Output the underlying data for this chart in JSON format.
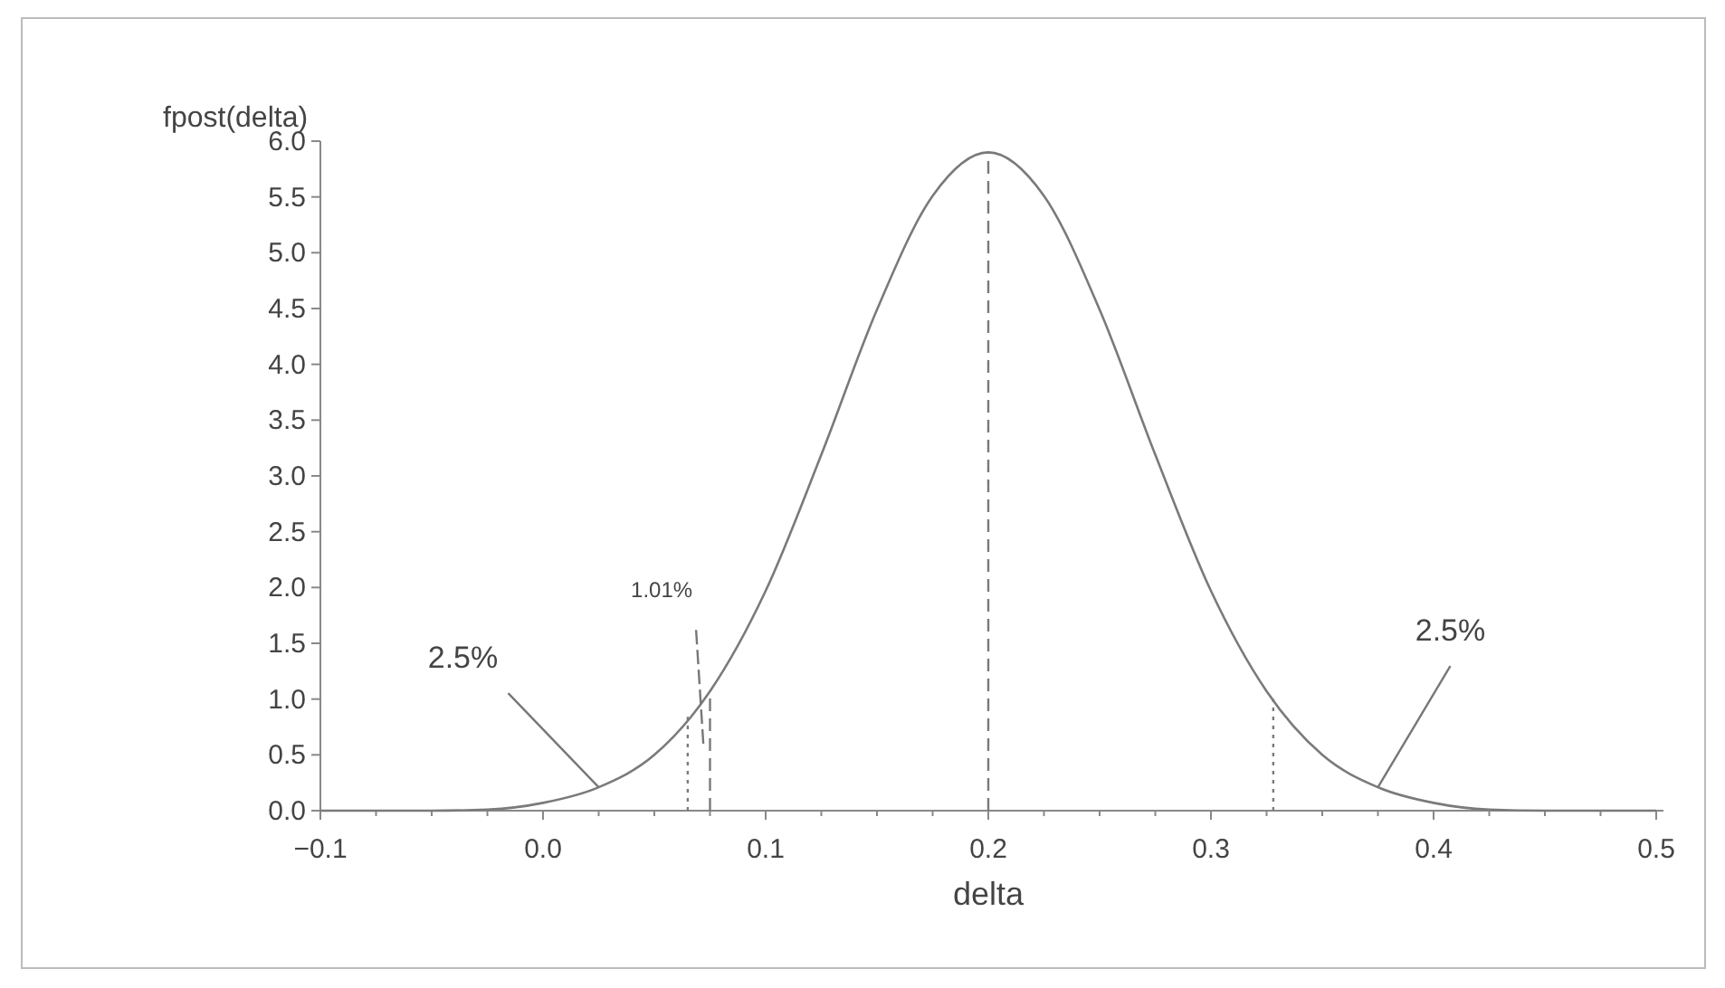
{
  "chart_data": {
    "type": "line",
    "xlabel": "delta",
    "ylabel": "fpost(delta)",
    "x": [
      -0.1,
      -0.075,
      -0.05,
      -0.025,
      0,
      0.025,
      0.05,
      0.075,
      0.1,
      0.125,
      0.15,
      0.175,
      0.2,
      0.225,
      0.25,
      0.275,
      0.3,
      0.325,
      0.35,
      0.375,
      0.4,
      0.425,
      0.45,
      0.475,
      0.5
    ],
    "series": [
      {
        "color": "#7a7a7a",
        "values": [
          0,
          0,
          0,
          0.01,
          0.07,
          0.21,
          0.5,
          1.07,
          1.97,
          3.19,
          4.49,
          5.51,
          5.9,
          5.51,
          4.49,
          3.19,
          1.97,
          1.07,
          0.5,
          0.21,
          0.07,
          0.01,
          0,
          0,
          0
        ]
      }
    ],
    "xlim": [
      -0.1,
      0.5
    ],
    "xticks": [
      {
        "value": -0.1,
        "label": "−0.1"
      },
      {
        "value": -0.075,
        "label": null
      },
      {
        "value": -0.05,
        "label": null
      },
      {
        "value": -0.025,
        "label": null
      },
      {
        "value": 0,
        "label": "0.0"
      },
      {
        "value": 0.025,
        "label": null
      },
      {
        "value": 0.05,
        "label": null
      },
      {
        "value": 0.075,
        "label": null
      },
      {
        "value": 0.1,
        "label": "0.1"
      },
      {
        "value": 0.125,
        "label": null
      },
      {
        "value": 0.15,
        "label": null
      },
      {
        "value": 0.175,
        "label": null
      },
      {
        "value": 0.2,
        "label": "0.2"
      },
      {
        "value": 0.225,
        "label": null
      },
      {
        "value": 0.25,
        "label": null
      },
      {
        "value": 0.275,
        "label": null
      },
      {
        "value": 0.3,
        "label": "0.3"
      },
      {
        "value": 0.325,
        "label": null
      },
      {
        "value": 0.35,
        "label": null
      },
      {
        "value": 0.375,
        "label": null
      },
      {
        "value": 0.4,
        "label": "0.4"
      },
      {
        "value": 0.425,
        "label": null
      },
      {
        "value": 0.45,
        "label": null
      },
      {
        "value": 0.475,
        "label": null
      },
      {
        "value": 0.5,
        "label": "0.5"
      }
    ],
    "ylim": [
      0,
      6
    ],
    "yticks": [
      {
        "value": 0,
        "label": "0.0"
      },
      {
        "value": 0.5,
        "label": "0.5"
      },
      {
        "value": 1,
        "label": "1.0"
      },
      {
        "value": 1.5,
        "label": "1.5"
      },
      {
        "value": 2,
        "label": "2.0"
      },
      {
        "value": 2.5,
        "label": "2.5"
      },
      {
        "value": 3,
        "label": "3.0"
      },
      {
        "value": 3.5,
        "label": "3.5"
      },
      {
        "value": 4,
        "label": "4.0"
      },
      {
        "value": 4.5,
        "label": "4.5"
      },
      {
        "value": 5,
        "label": "5.0"
      },
      {
        "value": 5.5,
        "label": "5.5"
      },
      {
        "value": 6,
        "label": "6.0"
      }
    ],
    "grid": false,
    "marker": "none",
    "line_style": "solid",
    "ref_lines": [
      {
        "axis": "x",
        "value": 0.065,
        "line_style": "dotted",
        "color": "#7a7a7a"
      },
      {
        "axis": "x",
        "value": 0.075,
        "line_style": "dashed",
        "color": "#7a7a7a"
      },
      {
        "axis": "x",
        "value": 0.2,
        "line_style": "dashed",
        "color": "#7a7a7a"
      },
      {
        "axis": "x",
        "value": 0.328,
        "line_style": "dotted",
        "color": "#7a7a7a"
      }
    ],
    "annotations": [
      {
        "text": "2.5%",
        "x": 0.025,
        "y": 0.21
      },
      {
        "text": "1.01%",
        "x": 0.072,
        "y": 0.6
      },
      {
        "text": "2.5%",
        "x": 0.375,
        "y": 0.21
      }
    ]
  }
}
